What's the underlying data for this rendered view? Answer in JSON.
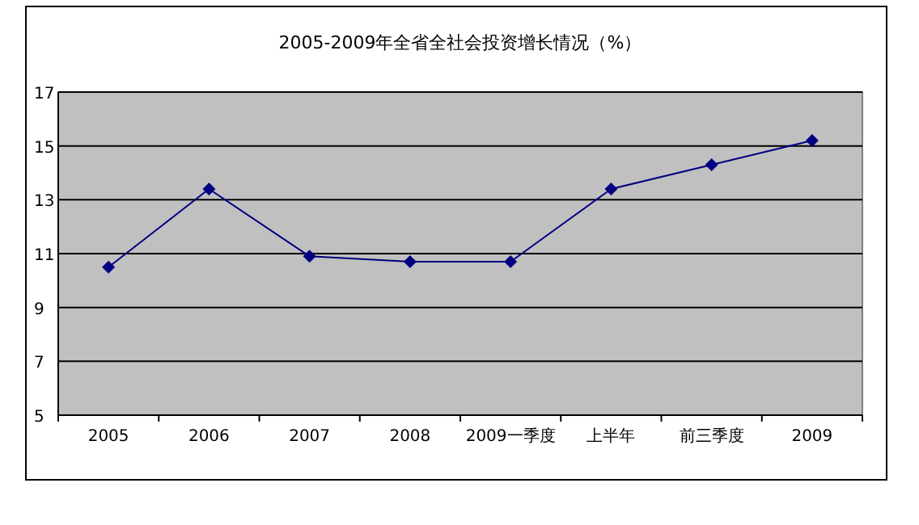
{
  "chart_data": {
    "type": "line",
    "title": "2005-2009年全省全社会投资增长情况（%）",
    "categories": [
      "2005",
      "2006",
      "2007",
      "2008",
      "2009一季度",
      "上半年",
      "前三季度",
      "2009"
    ],
    "series": [
      {
        "color": "#000080",
        "values": [
          10.5,
          13.4,
          10.9,
          10.7,
          10.7,
          13.4,
          14.3,
          15.2
        ]
      }
    ],
    "ylim": [
      5,
      17
    ],
    "yticks": [
      5,
      7,
      9,
      11,
      13,
      15,
      17
    ],
    "grid": "y",
    "marker": "diamond",
    "line_style": "solid"
  }
}
